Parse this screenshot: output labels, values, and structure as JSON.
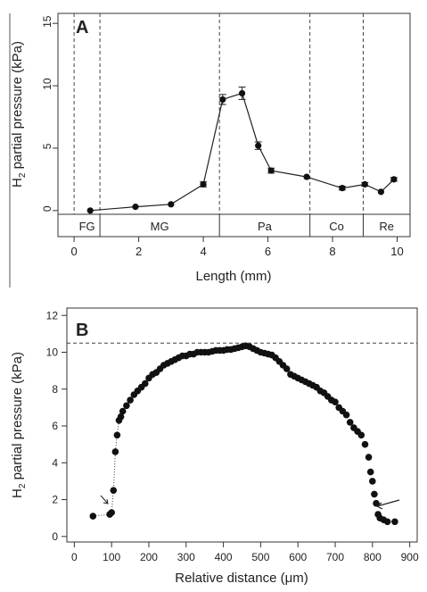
{
  "chart_data": [
    {
      "type": "line",
      "panel_letter": "A",
      "xlabel": "Length (mm)",
      "ylabel_main": "H",
      "ylabel_sub": "2",
      "ylabel_rest": " partial pressure (kPa)",
      "xlim": [
        -0.5,
        10.4
      ],
      "ylim": [
        -0.3,
        15.8
      ],
      "xticks": [
        "0",
        "2",
        "4",
        "6",
        "8",
        "10"
      ],
      "yticks": [
        "0",
        "5",
        "10",
        "15"
      ],
      "regions": [
        {
          "label": "FG",
          "start": 0,
          "end": 0.8
        },
        {
          "label": "MG",
          "start": 0.8,
          "end": 4.5
        },
        {
          "label": "Pa",
          "start": 4.5,
          "end": 7.3
        },
        {
          "label": "Co",
          "start": 7.3,
          "end": 8.95
        },
        {
          "label": "Re",
          "start": 8.95,
          "end": 10.4
        }
      ],
      "boundaries": [
        0,
        0.8,
        4.5,
        7.3,
        8.95
      ],
      "series": [
        {
          "x": [
            0.5,
            1.9,
            3.0,
            4.0,
            4.6,
            5.2,
            5.7,
            6.1,
            7.2,
            8.3,
            9.0,
            9.5,
            9.9
          ],
          "y": [
            0.0,
            0.3,
            0.5,
            2.1,
            8.9,
            9.4,
            5.2,
            3.2,
            2.7,
            1.8,
            2.1,
            1.5,
            2.5
          ],
          "err": [
            0.05,
            0.1,
            0.1,
            0.2,
            0.4,
            0.5,
            0.3,
            0.2,
            0.1,
            0.15,
            0.15,
            0.1,
            0.15
          ]
        }
      ]
    },
    {
      "type": "scatter",
      "panel_letter": "B",
      "xlabel": "Relative distance (μm)",
      "ylabel_main": "H",
      "ylabel_sub": "2",
      "ylabel_rest": " partial pressure (kPa)",
      "xlim": [
        -20,
        920
      ],
      "ylim": [
        -0.3,
        12.4
      ],
      "xticks": [
        "0",
        "100",
        "200",
        "300",
        "400",
        "500",
        "600",
        "700",
        "800",
        "900"
      ],
      "yticks": [
        "0",
        "2",
        "4",
        "6",
        "8",
        "10",
        "12"
      ],
      "reference_line_y": 10.5,
      "series": [
        {
          "x": [
            50,
            95,
            100,
            105,
            110,
            115,
            120,
            125,
            130,
            140,
            150,
            160,
            170,
            180,
            190,
            200,
            210,
            220,
            230,
            240,
            250,
            260,
            270,
            280,
            290,
            300,
            310,
            320,
            330,
            340,
            350,
            360,
            370,
            380,
            390,
            400,
            410,
            420,
            430,
            440,
            450,
            460,
            470,
            480,
            490,
            500,
            510,
            520,
            530,
            540,
            550,
            560,
            570,
            580,
            590,
            600,
            610,
            620,
            630,
            640,
            650,
            660,
            670,
            680,
            690,
            700,
            710,
            720,
            730,
            740,
            750,
            760,
            770,
            780,
            790,
            795,
            800,
            805,
            810,
            815,
            820,
            830,
            840,
            860
          ],
          "y": [
            1.1,
            1.2,
            1.3,
            2.5,
            4.6,
            5.5,
            6.3,
            6.5,
            6.8,
            7.1,
            7.4,
            7.7,
            7.9,
            8.1,
            8.3,
            8.6,
            8.8,
            8.9,
            9.1,
            9.3,
            9.4,
            9.5,
            9.6,
            9.7,
            9.8,
            9.8,
            9.9,
            9.9,
            10.0,
            10.0,
            10.0,
            10.0,
            10.05,
            10.1,
            10.1,
            10.1,
            10.15,
            10.15,
            10.2,
            10.25,
            10.3,
            10.35,
            10.3,
            10.2,
            10.1,
            10.0,
            9.95,
            9.9,
            9.85,
            9.7,
            9.5,
            9.3,
            9.1,
            8.8,
            8.7,
            8.6,
            8.5,
            8.4,
            8.3,
            8.2,
            8.1,
            7.9,
            7.8,
            7.6,
            7.4,
            7.3,
            7.0,
            6.8,
            6.6,
            6.2,
            5.9,
            5.7,
            5.5,
            5.0,
            4.3,
            3.5,
            3.0,
            2.3,
            1.8,
            1.2,
            1.0,
            0.9,
            0.8,
            0.8
          ]
        }
      ]
    }
  ]
}
